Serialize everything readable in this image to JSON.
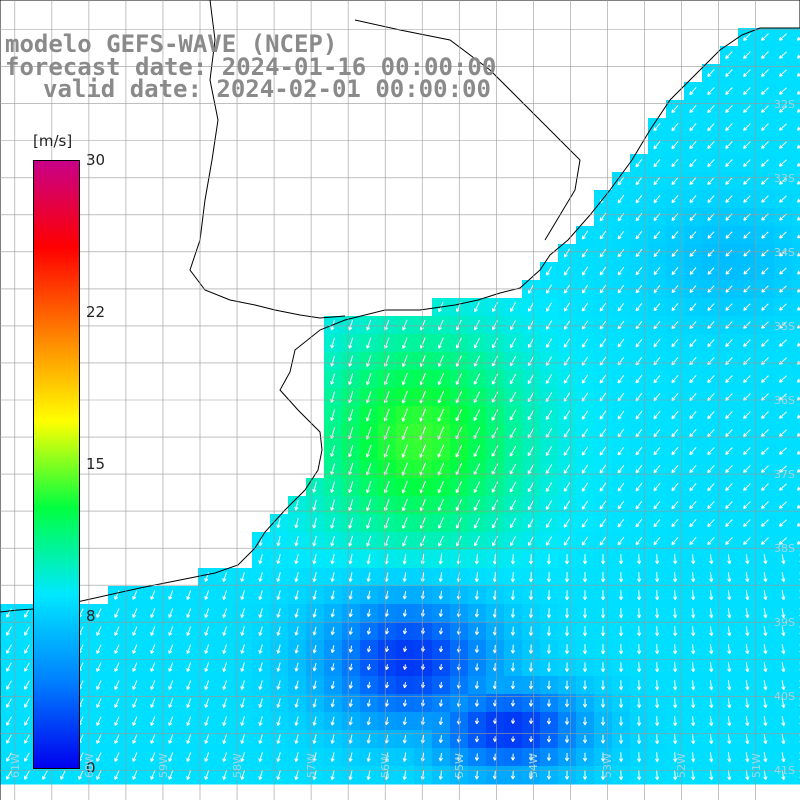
{
  "title": {
    "line1": "modelo GEFS-WAVE (NCEP)",
    "line2": "forecast date: 2024-01-16 00:00:00",
    "line3": "valid date: 2024-02-01 00:00:00"
  },
  "colorbar": {
    "unit": "[m/s]",
    "ticks": [
      "30",
      "22",
      "15",
      "8",
      "0"
    ],
    "min": 0,
    "max": 30,
    "stops": [
      "#0000ee",
      "#0080ff",
      "#00e8ff",
      "#00ff40",
      "#ffff00",
      "#ff8000",
      "#ff0000",
      "#c80088"
    ]
  },
  "map": {
    "lat_labels": [
      "32S",
      "33S",
      "34S",
      "35S",
      "36S",
      "37S",
      "38S",
      "39S",
      "40S",
      "41S"
    ],
    "lon_labels": [
      "61W",
      "60W",
      "59W",
      "58W",
      "57W",
      "56W",
      "55W",
      "54W",
      "53W",
      "52W",
      "51W"
    ],
    "extent": {
      "lon_min": -61.2,
      "lon_max": -50.4,
      "lat_top": -30.6,
      "lat_bottom": -41.4
    },
    "land_color": "#ffffff",
    "grid_color": "#999999",
    "arrow_color": "#ffffff",
    "field": "wind speed (m/s) with direction arrows"
  }
}
